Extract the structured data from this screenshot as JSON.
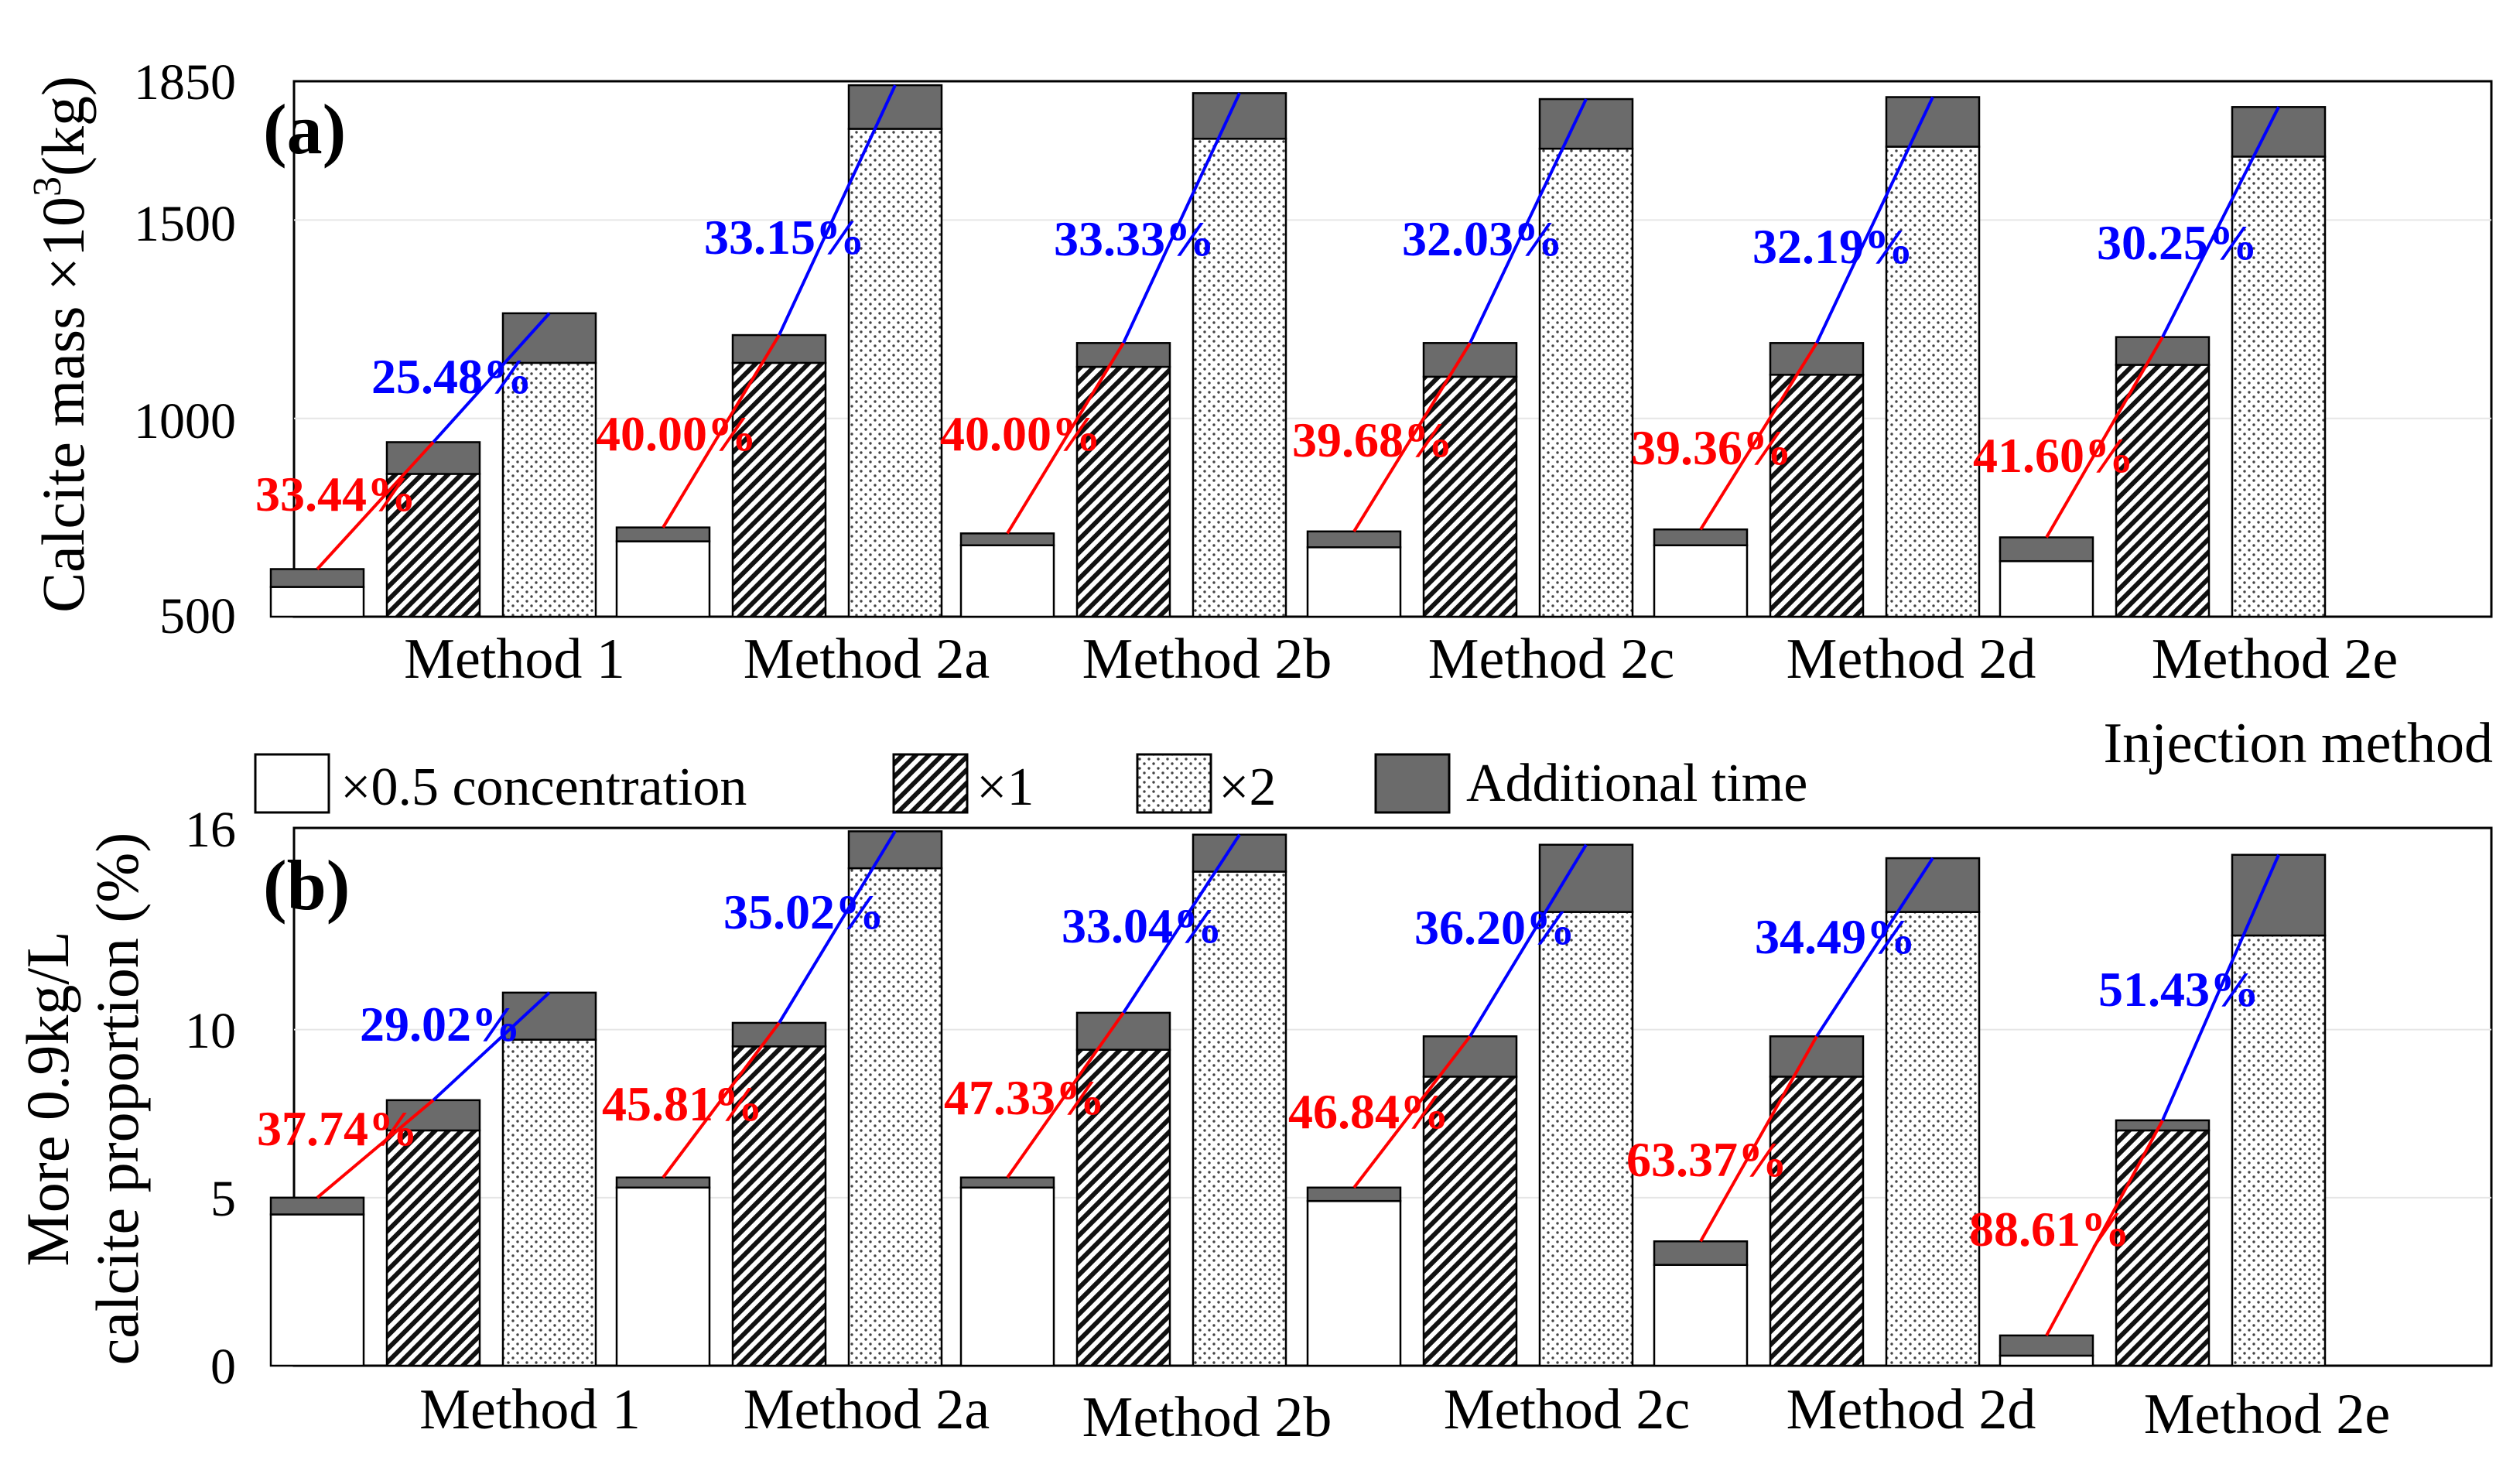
{
  "chart_data": [
    {
      "type": "bar",
      "panel_label": "(a)",
      "ylabel_parts": [
        "Calcite mass ",
        "×10",
        "3",
        "(kg)"
      ],
      "xlabel": "Injection method",
      "y_ticks": [
        "500",
        "1000",
        "1500",
        "1850"
      ],
      "ylim": [
        500,
        1850
      ],
      "categories": [
        "Method 1",
        "Method 2a",
        "Method 2b",
        "Method 2c",
        "Method 2d",
        "Method 2e"
      ],
      "series_base": [
        {
          "name": "×0.5 concentration",
          "values": [
            575,
            690,
            680,
            675,
            680,
            640
          ]
        },
        {
          "name": "×1",
          "values": [
            860,
            1140,
            1130,
            1105,
            1110,
            1135
          ]
        },
        {
          "name": "×2",
          "values": [
            1140,
            1730,
            1705,
            1680,
            1685,
            1660
          ]
        }
      ],
      "series_total_with_additional_time": [
        {
          "name": "×0.5 concentration",
          "values": [
            620,
            725,
            710,
            715,
            720,
            700
          ]
        },
        {
          "name": "×1",
          "values": [
            940,
            1210,
            1190,
            1190,
            1190,
            1205
          ]
        },
        {
          "name": "×2",
          "values": [
            1265,
            1840,
            1820,
            1805,
            1810,
            1785
          ]
        }
      ],
      "increase_low_to_mid": [
        "33.44%",
        "40.00%",
        "40.00%",
        "39.68%",
        "39.36%",
        "41.60%"
      ],
      "increase_mid_to_high": [
        "25.48%",
        "33.15%",
        "33.33%",
        "32.03%",
        "32.19%",
        "30.25%"
      ]
    },
    {
      "type": "bar",
      "panel_label": "(b)",
      "ylabel_line1": "More 0.9kg/L",
      "ylabel_line2": "calcite proportion (%)",
      "y_ticks": [
        "0",
        "5",
        "10",
        "16"
      ],
      "ylim": [
        0,
        16
      ],
      "categories": [
        "Method 1",
        "Method 2a",
        "Method 2b",
        "Method 2c",
        "Method 2d",
        "Method 2e"
      ],
      "series_base": [
        {
          "name": "×0.5 concentration",
          "values": [
            4.5,
            5.3,
            5.3,
            4.9,
            3.0,
            0.3
          ]
        },
        {
          "name": "×1",
          "values": [
            7.0,
            9.5,
            9.4,
            8.6,
            8.6,
            7.0
          ]
        },
        {
          "name": "×2",
          "values": [
            9.7,
            14.8,
            14.7,
            13.5,
            13.5,
            12.8
          ]
        }
      ],
      "series_total_with_additional_time": [
        {
          "name": "×0.5 concentration",
          "values": [
            5.0,
            5.6,
            5.6,
            5.3,
            3.7,
            0.9
          ]
        },
        {
          "name": "×1",
          "values": [
            7.9,
            10.2,
            10.5,
            9.8,
            9.8,
            7.3
          ]
        },
        {
          "name": "×2",
          "values": [
            11.1,
            15.9,
            15.8,
            15.5,
            15.1,
            15.2
          ]
        }
      ],
      "increase_low_to_mid": [
        "37.74%",
        "45.81%",
        "47.33%",
        "46.84%",
        "63.37%",
        "88.61%"
      ],
      "increase_mid_to_high": [
        "29.02%",
        "35.02%",
        "33.04%",
        "36.20%",
        "34.49%",
        "51.43%"
      ]
    }
  ],
  "legend": {
    "items": [
      "×0.5 concentration",
      "×1",
      "×2",
      "Additional time"
    ],
    "placement": "between-panels"
  },
  "colors": {
    "additional_time": "#6b6b6b",
    "low_to_mid_line": "#ff0000",
    "mid_to_high_line": "#0000ff",
    "grid": "#e6e6e6"
  }
}
